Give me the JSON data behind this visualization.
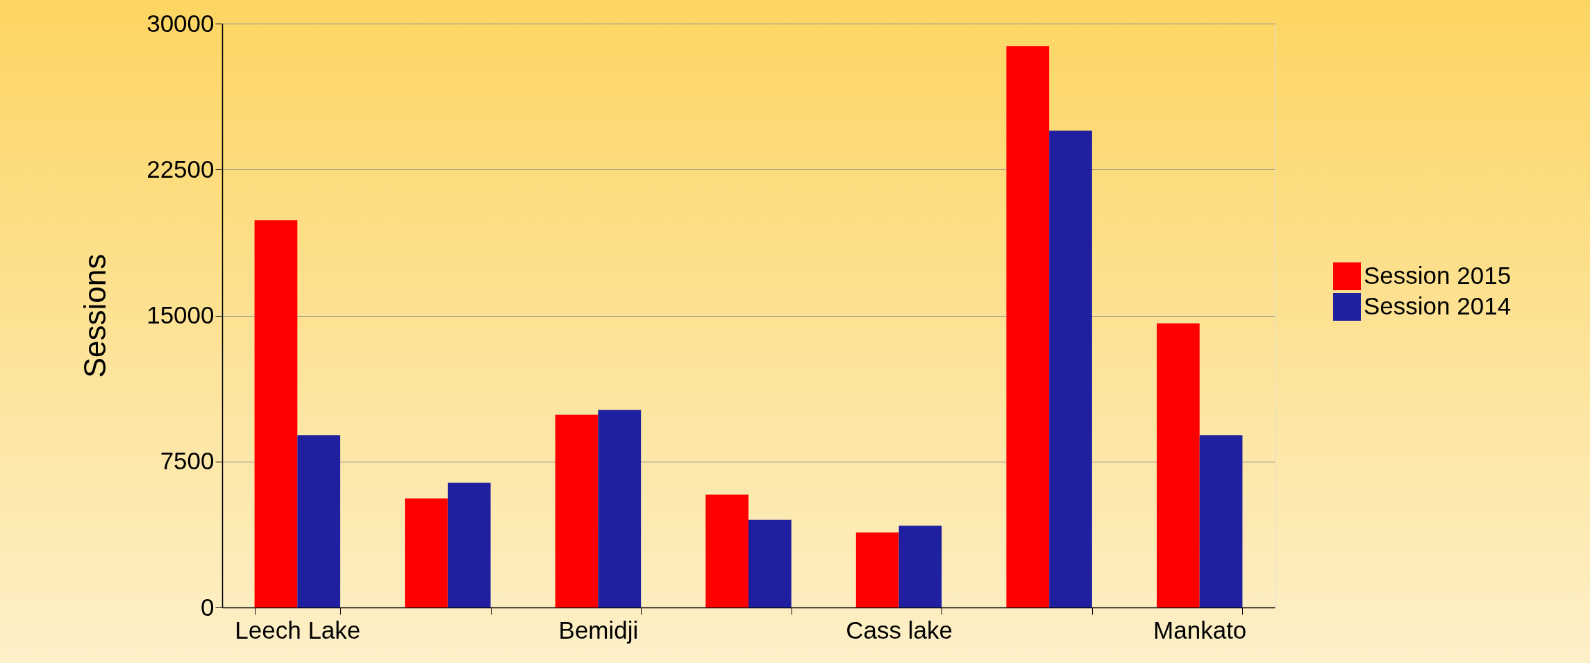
{
  "chart_data": {
    "type": "bar",
    "ylabel": "Sessions",
    "categories": [
      "Leech Lake",
      null,
      "Bemidji",
      null,
      "Cass lake",
      null,
      "Mankato"
    ],
    "series": [
      {
        "name": "Session 2015",
        "color": "#ff0000",
        "values": [
          19900,
          5600,
          9900,
          5800,
          3850,
          28850,
          14600
        ]
      },
      {
        "name": "Session 2014",
        "color": "#1f1f9f",
        "values": [
          8850,
          6400,
          10150,
          4500,
          4200,
          24500,
          8850
        ]
      }
    ],
    "ylim": [
      0,
      30000
    ],
    "yticks": [
      0,
      7500,
      15000,
      22500,
      30000
    ],
    "grid": "y",
    "legend": "right"
  }
}
